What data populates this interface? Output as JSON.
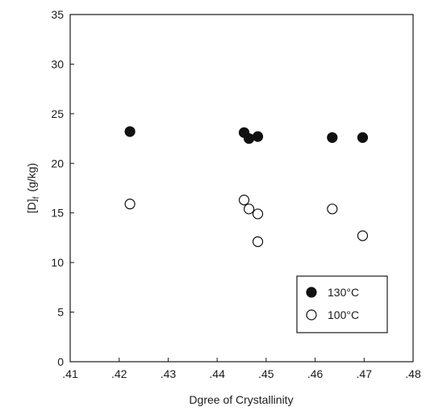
{
  "chart_data": {
    "type": "scatter",
    "title": "",
    "xlabel": "Dgree of Crystallinity",
    "ylabel": "[D]",
    "ylabel_subscript": "f",
    "ylabel_units": "(g/kg)",
    "xlim": [
      0.41,
      0.48
    ],
    "ylim": [
      0,
      35
    ],
    "x_ticks": [
      0.41,
      0.42,
      0.43,
      0.44,
      0.45,
      0.46,
      0.47,
      0.48
    ],
    "x_tick_labels": [
      ".41",
      ".42",
      ".43",
      ".44",
      ".45",
      ".46",
      ".47",
      ".48"
    ],
    "y_ticks": [
      0,
      5,
      10,
      15,
      20,
      25,
      30,
      35
    ],
    "y_tick_labels": [
      "0",
      "5",
      "10",
      "15",
      "20",
      "25",
      "30",
      "35"
    ],
    "grid": false,
    "legend_position": "bottom-right",
    "series": [
      {
        "name": "130°C",
        "marker": "filled-circle",
        "color": "#111111",
        "x": [
          0.4222,
          0.4455,
          0.4465,
          0.4483,
          0.4635,
          0.4697
        ],
        "y": [
          23.2,
          23.1,
          22.5,
          22.7,
          22.6,
          22.6
        ]
      },
      {
        "name": "100°C",
        "marker": "open-circle",
        "color": "#111111",
        "x": [
          0.4222,
          0.4455,
          0.4465,
          0.4483,
          0.4483,
          0.4635,
          0.4697
        ],
        "y": [
          15.9,
          16.3,
          15.4,
          14.9,
          12.1,
          15.4,
          12.7
        ]
      }
    ]
  }
}
